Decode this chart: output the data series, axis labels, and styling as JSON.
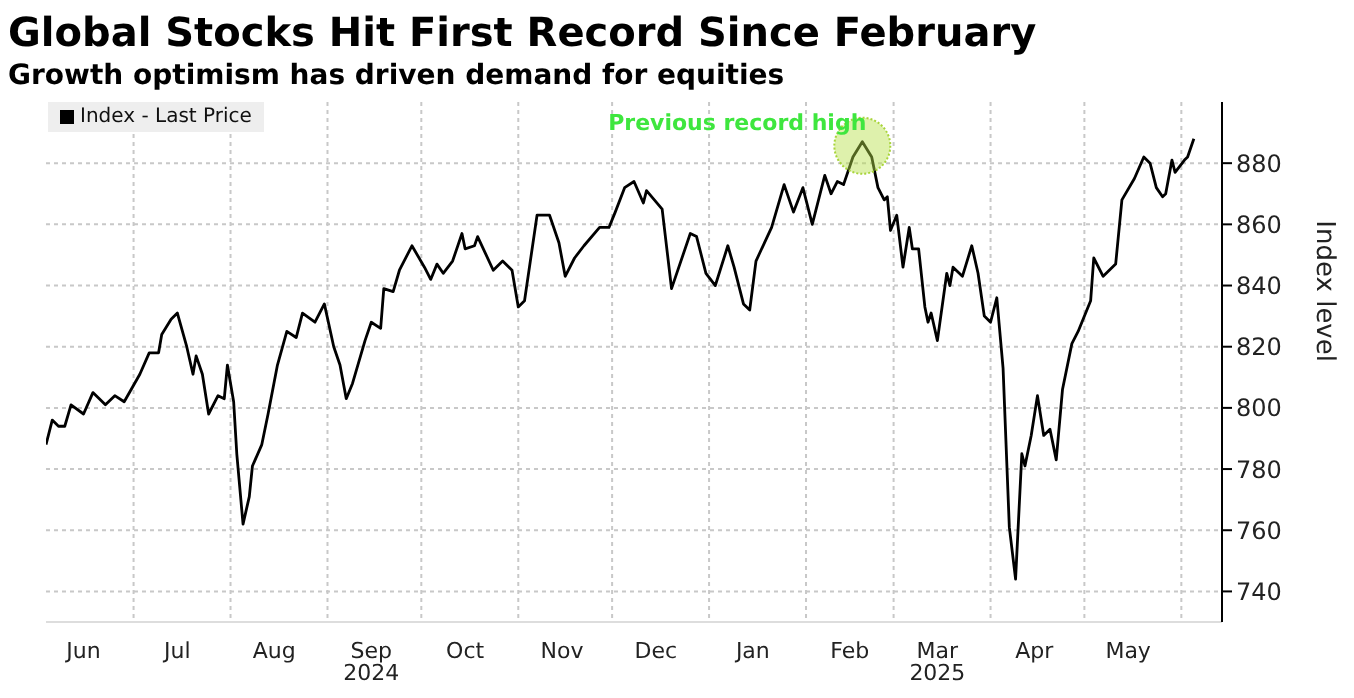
{
  "chart_data": {
    "type": "line",
    "title": "Global Stocks Hit First Record Since February",
    "subtitle": "Growth optimism has driven demand for equities",
    "ylabel": "Index level",
    "x": [
      "2024-06-03",
      "2024-06-05",
      "2024-06-07",
      "2024-06-09",
      "2024-06-11",
      "2024-06-15",
      "2024-06-18",
      "2024-06-22",
      "2024-06-25",
      "2024-06-28",
      "2024-07-03",
      "2024-07-06",
      "2024-07-09",
      "2024-07-10",
      "2024-07-13",
      "2024-07-15",
      "2024-07-18",
      "2024-07-20",
      "2024-07-21",
      "2024-07-23",
      "2024-07-25",
      "2024-07-28",
      "2024-07-30",
      "2024-07-31",
      "2024-08-02",
      "2024-08-03",
      "2024-08-05",
      "2024-08-07",
      "2024-08-08",
      "2024-08-11",
      "2024-08-13",
      "2024-08-16",
      "2024-08-19",
      "2024-08-22",
      "2024-08-24",
      "2024-08-28",
      "2024-08-31",
      "2024-09-03",
      "2024-09-05",
      "2024-09-07",
      "2024-09-09",
      "2024-09-13",
      "2024-09-15",
      "2024-09-18",
      "2024-09-19",
      "2024-09-22",
      "2024-09-24",
      "2024-09-28",
      "2024-10-02",
      "2024-10-04",
      "2024-10-06",
      "2024-10-08",
      "2024-10-11",
      "2024-10-14",
      "2024-10-15",
      "2024-10-18",
      "2024-10-19",
      "2024-10-24",
      "2024-10-27",
      "2024-10-30",
      "2024-11-01",
      "2024-11-03",
      "2024-11-07",
      "2024-11-11",
      "2024-11-14",
      "2024-11-16",
      "2024-11-19",
      "2024-11-22",
      "2024-11-27",
      "2024-11-30",
      "2024-12-02",
      "2024-12-05",
      "2024-12-08",
      "2024-12-11",
      "2024-12-12",
      "2024-12-17",
      "2024-12-20",
      "2024-12-26",
      "2024-12-28",
      "2024-12-31",
      "2025-01-03",
      "2025-01-07",
      "2025-01-09",
      "2025-01-12",
      "2025-01-14",
      "2025-01-16",
      "2025-01-21",
      "2025-01-25",
      "2025-01-28",
      "2025-01-31",
      "2025-02-03",
      "2025-02-07",
      "2025-02-09",
      "2025-02-11",
      "2025-02-13",
      "2025-02-16",
      "2025-02-19",
      "2025-02-22",
      "2025-02-24",
      "2025-02-26",
      "2025-02-27",
      "2025-02-28",
      "2025-03-02",
      "2025-03-04",
      "2025-03-06",
      "2025-03-07",
      "2025-03-09",
      "2025-03-11",
      "2025-03-12",
      "2025-03-13",
      "2025-03-15",
      "2025-03-18",
      "2025-03-19",
      "2025-03-20",
      "2025-03-23",
      "2025-03-26",
      "2025-03-28",
      "2025-03-30",
      "2025-04-01",
      "2025-04-03",
      "2025-04-05",
      "2025-04-07",
      "2025-04-09",
      "2025-04-11",
      "2025-04-12",
      "2025-04-14",
      "2025-04-16",
      "2025-04-18",
      "2025-04-20",
      "2025-04-22",
      "2025-04-24",
      "2025-04-27",
      "2025-04-29",
      "2025-05-03",
      "2025-05-04",
      "2025-05-07",
      "2025-05-11",
      "2025-05-13",
      "2025-05-17",
      "2025-05-20",
      "2025-05-22",
      "2025-05-24",
      "2025-05-26",
      "2025-05-27",
      "2025-05-29",
      "2025-05-30",
      "2025-06-02",
      "2025-06-03",
      "2025-06-05"
    ],
    "series": [
      {
        "name": "Index - Last Price",
        "color": "#000000",
        "values": [
          788,
          796,
          794,
          794,
          801,
          798,
          805,
          801,
          804,
          802,
          811,
          818,
          818,
          824,
          829,
          831,
          820,
          811,
          817,
          811,
          798,
          804,
          803,
          814,
          802,
          785,
          762,
          771,
          781,
          788,
          798,
          814,
          825,
          823,
          831,
          828,
          834,
          820,
          814,
          803,
          808,
          822,
          828,
          826,
          839,
          838,
          845,
          853,
          846,
          842,
          847,
          844,
          848,
          857,
          852,
          853,
          856,
          845,
          848,
          845,
          833,
          835,
          863,
          863,
          854,
          843,
          849,
          853,
          859,
          859,
          864,
          872,
          874,
          867,
          871,
          865,
          839,
          857,
          856,
          844,
          840,
          853,
          846,
          834,
          832,
          848,
          859,
          873,
          864,
          872,
          860,
          876,
          870,
          874,
          873,
          882,
          887,
          882,
          872,
          868,
          869,
          858,
          863,
          846,
          859,
          852,
          852,
          833,
          828,
          831,
          822,
          844,
          840,
          846,
          843,
          853,
          844,
          830,
          828,
          836,
          813,
          761,
          744,
          785,
          781,
          791,
          804,
          791,
          793,
          783,
          806,
          821,
          825,
          835,
          849,
          843,
          847,
          868,
          875,
          882,
          880,
          872,
          869,
          870,
          881,
          877,
          881,
          882,
          888
        ]
      }
    ],
    "xlim": [
      "2024-06-03",
      "2025-06-14"
    ],
    "xticks": [
      {
        "value": "2024-06-15",
        "label": "Jun"
      },
      {
        "value": "2024-07-01",
        "label": null
      },
      {
        "value": "2024-07-15",
        "label": "Jul"
      },
      {
        "value": "2024-08-01",
        "label": null
      },
      {
        "value": "2024-08-15",
        "label": "Aug"
      },
      {
        "value": "2024-09-01",
        "label": null
      },
      {
        "value": "2024-09-15",
        "label": "Sep\n2024"
      },
      {
        "value": "2024-10-01",
        "label": null
      },
      {
        "value": "2024-10-15",
        "label": "Oct"
      },
      {
        "value": "2024-11-01",
        "label": null
      },
      {
        "value": "2024-11-15",
        "label": "Nov"
      },
      {
        "value": "2024-12-01",
        "label": null
      },
      {
        "value": "2024-12-15",
        "label": "Dec"
      },
      {
        "value": "2025-01-01",
        "label": null
      },
      {
        "value": "2025-01-15",
        "label": "Jan"
      },
      {
        "value": "2025-02-01",
        "label": null
      },
      {
        "value": "2025-02-15",
        "label": "Feb"
      },
      {
        "value": "2025-03-01",
        "label": null
      },
      {
        "value": "2025-03-15",
        "label": "Mar\n2025"
      },
      {
        "value": "2025-04-01",
        "label": null
      },
      {
        "value": "2025-04-15",
        "label": "Apr"
      },
      {
        "value": "2025-05-01",
        "label": null
      },
      {
        "value": "2025-05-15",
        "label": "May"
      },
      {
        "value": "2025-06-01",
        "label": null
      }
    ],
    "ylim": [
      730,
      900
    ],
    "yticks": [
      740,
      760,
      780,
      800,
      820,
      840,
      860,
      880
    ],
    "grid": true,
    "legend": "top left",
    "marker": "none",
    "line_style": "solid",
    "annotations": [
      {
        "text": "Previous record high",
        "x": "2025-02-19",
        "y": 887
      }
    ]
  }
}
